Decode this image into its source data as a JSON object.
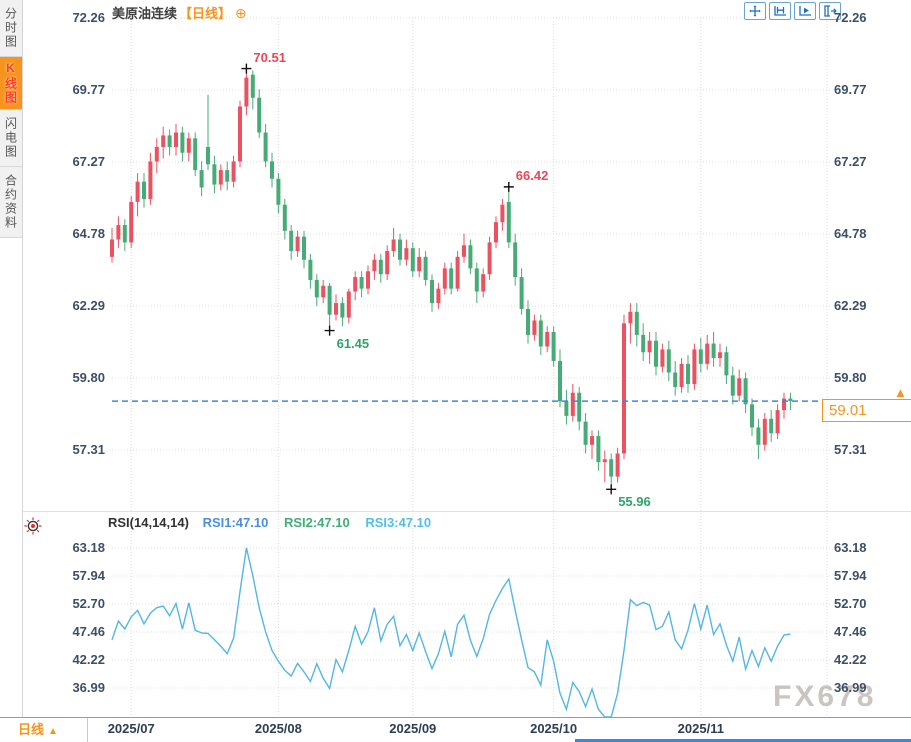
{
  "app": {
    "title": "美原油连续",
    "period_label": "【日线】",
    "watermark": "FX678"
  },
  "sidebar": {
    "tabs": [
      {
        "label": "分时图",
        "active": false
      },
      {
        "label": "K线图",
        "active": true
      },
      {
        "label": "闪电图",
        "active": false
      },
      {
        "label": "合约资料",
        "active": false
      }
    ]
  },
  "toolbar": {
    "icons": [
      "crosshair-icon",
      "range-stats-icon",
      "replay-icon",
      "export-icon"
    ],
    "accent_color": "#1f6fc0"
  },
  "colors": {
    "up_candle": "#ec5160",
    "down_candle": "#46ab76",
    "accent_orange": "#f7941e",
    "current_price_line": "#3f86d8",
    "rsi_line": "#54b6e4",
    "grid": "#dcdcdc",
    "axis_text": "#3d4f66"
  },
  "bottom": {
    "period_tab": "日线",
    "period_arrow": "▲"
  },
  "price_tag": {
    "label": "59.01",
    "arrow": "▲"
  },
  "chart_data": [
    {
      "type": "candlestick",
      "title": "美原油连续【日线】",
      "y_tick_labels": [
        "72.26",
        "69.77",
        "67.27",
        "64.78",
        "62.29",
        "59.80",
        "57.31"
      ],
      "y_ticks": [
        72.26,
        69.77,
        67.27,
        64.78,
        62.29,
        59.8,
        57.31
      ],
      "x_tick_labels": [
        "2025/07",
        "2025/08",
        "2025/09",
        "2025/10",
        "2025/11"
      ],
      "ylim": [
        55.5,
        72.8
      ],
      "grid": "dotted",
      "current_price": 59.01,
      "annotations": [
        {
          "label": "70.51",
          "price": 70.51,
          "candle_index": 21,
          "kind": "high"
        },
        {
          "label": "61.45",
          "price": 61.45,
          "candle_index": 34,
          "kind": "low"
        },
        {
          "label": "66.42",
          "price": 66.42,
          "candle_index": 62,
          "kind": "high"
        },
        {
          "label": "55.96",
          "price": 55.96,
          "candle_index": 78,
          "kind": "low"
        }
      ],
      "candles": [
        [
          "2025/06/26",
          64.0,
          65.0,
          63.8,
          64.6
        ],
        [
          "2025/06/27",
          64.6,
          65.4,
          64.3,
          65.1
        ],
        [
          "2025/06/30",
          65.1,
          65.3,
          64.2,
          64.5
        ],
        [
          "2025/07/01",
          64.5,
          66.1,
          64.3,
          65.9
        ],
        [
          "2025/07/02",
          65.9,
          66.9,
          65.4,
          66.6
        ],
        [
          "2025/07/03",
          66.6,
          66.9,
          65.7,
          66.0
        ],
        [
          "2025/07/04",
          66.0,
          67.6,
          65.8,
          67.3
        ],
        [
          "2025/07/07",
          67.3,
          68.1,
          66.9,
          67.8
        ],
        [
          "2025/07/08",
          67.8,
          68.5,
          67.4,
          68.2
        ],
        [
          "2025/07/09",
          68.2,
          68.4,
          67.5,
          67.8
        ],
        [
          "2025/07/10",
          67.8,
          68.6,
          67.5,
          68.3
        ],
        [
          "2025/07/11",
          68.3,
          68.5,
          67.3,
          67.6
        ],
        [
          "2025/07/14",
          67.6,
          68.3,
          67.3,
          68.1
        ],
        [
          "2025/07/15",
          68.1,
          68.3,
          66.8,
          67.0
        ],
        [
          "2025/07/16",
          67.0,
          67.3,
          66.1,
          66.4
        ],
        [
          "2025/07/17",
          67.8,
          69.6,
          67.0,
          67.2
        ],
        [
          "2025/07/18",
          67.2,
          67.5,
          66.2,
          66.5
        ],
        [
          "2025/07/21",
          66.5,
          67.2,
          66.3,
          67.0
        ],
        [
          "2025/07/22",
          67.0,
          67.3,
          66.3,
          66.6
        ],
        [
          "2025/07/23",
          66.6,
          67.5,
          66.4,
          67.3
        ],
        [
          "2025/07/24",
          67.3,
          69.4,
          67.1,
          69.2
        ],
        [
          "2025/07/25",
          69.2,
          70.51,
          68.9,
          70.2
        ],
        [
          "2025/07/28",
          70.3,
          70.45,
          69.1,
          69.5
        ],
        [
          "2025/07/29",
          69.5,
          69.8,
          68.1,
          68.3
        ],
        [
          "2025/07/30",
          68.3,
          68.6,
          67.1,
          67.3
        ],
        [
          "2025/07/31",
          67.3,
          67.6,
          66.4,
          66.7
        ],
        [
          "2025/08/01",
          66.7,
          66.9,
          65.5,
          65.8
        ],
        [
          "2025/08/04",
          65.8,
          66.0,
          64.6,
          64.9
        ],
        [
          "2025/08/05",
          64.9,
          65.1,
          63.9,
          64.2
        ],
        [
          "2025/08/06",
          64.2,
          64.9,
          64.0,
          64.7
        ],
        [
          "2025/08/07",
          64.7,
          64.9,
          63.6,
          63.9
        ],
        [
          "2025/08/08",
          63.9,
          64.1,
          62.9,
          63.2
        ],
        [
          "2025/08/11",
          63.2,
          63.4,
          62.3,
          62.6
        ],
        [
          "2025/08/12",
          62.6,
          63.2,
          62.4,
          63.0
        ],
        [
          "2025/08/13",
          63.0,
          63.1,
          61.45,
          62.0
        ],
        [
          "2025/08/14",
          62.0,
          62.7,
          61.8,
          62.4
        ],
        [
          "2025/08/15",
          62.4,
          62.6,
          61.6,
          61.9
        ],
        [
          "2025/08/18",
          61.9,
          62.9,
          61.7,
          62.8
        ],
        [
          "2025/08/19",
          62.8,
          63.5,
          62.5,
          63.3
        ],
        [
          "2025/08/20",
          63.3,
          63.5,
          62.6,
          62.9
        ],
        [
          "2025/08/21",
          62.9,
          63.7,
          62.7,
          63.5
        ],
        [
          "2025/08/22",
          63.5,
          64.1,
          63.2,
          63.9
        ],
        [
          "2025/08/25",
          63.9,
          64.1,
          63.1,
          63.4
        ],
        [
          "2025/08/26",
          63.4,
          64.4,
          63.2,
          64.2
        ],
        [
          "2025/08/27",
          64.2,
          65.0,
          64.0,
          64.6
        ],
        [
          "2025/08/28",
          64.6,
          64.8,
          63.7,
          63.9
        ],
        [
          "2025/08/29",
          63.9,
          64.6,
          63.7,
          64.3
        ],
        [
          "2025/09/01",
          64.3,
          64.5,
          63.3,
          63.5
        ],
        [
          "2025/09/02",
          63.5,
          64.3,
          63.3,
          64.0
        ],
        [
          "2025/09/03",
          64.0,
          64.2,
          63.0,
          63.2
        ],
        [
          "2025/09/04",
          63.2,
          63.4,
          62.1,
          62.4
        ],
        [
          "2025/09/05",
          62.4,
          63.1,
          62.2,
          62.9
        ],
        [
          "2025/09/08",
          62.9,
          63.8,
          62.7,
          63.6
        ],
        [
          "2025/09/09",
          63.6,
          63.8,
          62.7,
          62.9
        ],
        [
          "2025/09/10",
          62.9,
          64.2,
          62.8,
          64.0
        ],
        [
          "2025/09/11",
          64.0,
          64.8,
          63.8,
          64.4
        ],
        [
          "2025/09/12",
          64.4,
          64.6,
          63.4,
          63.6
        ],
        [
          "2025/09/15",
          63.6,
          63.8,
          62.4,
          62.8
        ],
        [
          "2025/09/16",
          62.8,
          63.6,
          62.6,
          63.4
        ],
        [
          "2025/09/17",
          63.4,
          64.7,
          63.2,
          64.5
        ],
        [
          "2025/09/18",
          64.5,
          65.4,
          64.3,
          65.2
        ],
        [
          "2025/09/19",
          65.2,
          66.0,
          64.9,
          65.8
        ],
        [
          "2025/09/22",
          65.9,
          66.42,
          64.3,
          64.5
        ],
        [
          "2025/09/23",
          64.5,
          64.8,
          63.0,
          63.3
        ],
        [
          "2025/09/24",
          63.3,
          63.6,
          62.0,
          62.2
        ],
        [
          "2025/09/25",
          62.2,
          62.5,
          61.0,
          61.3
        ],
        [
          "2025/09/26",
          61.3,
          62.0,
          61.1,
          61.8
        ],
        [
          "2025/09/29",
          61.8,
          62.0,
          60.6,
          60.9
        ],
        [
          "2025/09/30",
          60.9,
          61.6,
          60.7,
          61.4
        ],
        [
          "2025/10/01",
          61.4,
          61.6,
          60.2,
          60.4
        ],
        [
          "2025/10/02",
          60.4,
          60.8,
          58.8,
          59.0
        ],
        [
          "2025/10/03",
          59.0,
          59.4,
          58.2,
          58.5
        ],
        [
          "2025/10/06",
          58.5,
          59.6,
          58.3,
          59.3
        ],
        [
          "2025/10/07",
          59.3,
          59.5,
          58.0,
          58.3
        ],
        [
          "2025/10/08",
          58.3,
          58.6,
          57.2,
          57.5
        ],
        [
          "2025/10/09",
          57.5,
          58.0,
          57.0,
          57.8
        ],
        [
          "2025/10/10",
          57.8,
          58.0,
          56.6,
          56.9
        ],
        [
          "2025/10/13",
          56.9,
          57.3,
          56.2,
          57.0
        ],
        [
          "2025/10/14",
          57.0,
          57.2,
          55.96,
          56.4
        ],
        [
          "2025/10/15",
          56.4,
          57.4,
          56.2,
          57.2
        ],
        [
          "2025/10/16",
          57.2,
          62.0,
          57.0,
          61.7
        ],
        [
          "2025/10/17",
          61.7,
          62.4,
          61.0,
          62.1
        ],
        [
          "2025/10/20",
          62.1,
          62.4,
          60.9,
          61.3
        ],
        [
          "2025/10/21",
          61.3,
          61.7,
          60.4,
          60.7
        ],
        [
          "2025/10/22",
          60.7,
          61.4,
          60.3,
          61.1
        ],
        [
          "2025/10/23",
          61.1,
          61.4,
          59.9,
          60.2
        ],
        [
          "2025/10/24",
          60.2,
          61.0,
          60.0,
          60.8
        ],
        [
          "2025/10/27",
          60.8,
          61.1,
          59.7,
          60.0
        ],
        [
          "2025/10/28",
          60.0,
          60.4,
          59.2,
          59.5
        ],
        [
          "2025/10/29",
          59.5,
          60.5,
          59.3,
          60.3
        ],
        [
          "2025/10/30",
          60.3,
          60.6,
          59.3,
          59.6
        ],
        [
          "2025/10/31",
          59.6,
          61.0,
          59.4,
          60.8
        ],
        [
          "2025/11/03",
          60.8,
          61.2,
          60.0,
          60.3
        ],
        [
          "2025/11/04",
          60.3,
          61.3,
          60.1,
          61.0
        ],
        [
          "2025/11/05",
          61.0,
          61.4,
          60.2,
          60.5
        ],
        [
          "2025/11/06",
          60.5,
          61.0,
          60.2,
          60.7
        ],
        [
          "2025/11/07",
          60.7,
          60.9,
          59.6,
          59.9
        ],
        [
          "2025/11/10",
          59.9,
          60.2,
          58.9,
          59.2
        ],
        [
          "2025/11/11",
          59.2,
          60.1,
          59.0,
          59.8
        ],
        [
          "2025/11/12",
          59.8,
          60.0,
          58.6,
          58.9
        ],
        [
          "2025/11/13",
          58.9,
          59.1,
          57.8,
          58.1
        ],
        [
          "2025/11/14",
          58.1,
          58.4,
          57.0,
          57.5
        ],
        [
          "2025/11/17",
          57.5,
          58.6,
          57.3,
          58.4
        ],
        [
          "2025/11/18",
          58.4,
          58.7,
          57.6,
          57.9
        ],
        [
          "2025/11/19",
          57.9,
          58.9,
          57.7,
          58.7
        ],
        [
          "2025/11/20",
          58.7,
          59.3,
          58.4,
          59.1
        ],
        [
          "2025/11/21",
          59.1,
          59.3,
          58.7,
          59.01
        ]
      ]
    },
    {
      "type": "line",
      "name": "RSI",
      "legend": [
        "RSI(14,14,14)",
        "RSI1:47.10",
        "RSI2:47.10",
        "RSI3:47.10"
      ],
      "y_tick_labels": [
        "63.18",
        "57.94",
        "52.70",
        "47.46",
        "42.22",
        "36.99"
      ],
      "y_ticks": [
        63.18,
        57.94,
        52.7,
        47.46,
        42.22,
        36.99
      ],
      "last_value": 47.1,
      "values": [
        46.0,
        49.5,
        48.0,
        50.3,
        51.5,
        49.0,
        51.0,
        52.0,
        52.3,
        50.5,
        52.8,
        48.0,
        52.9,
        47.8,
        47.3,
        47.2,
        46.0,
        44.8,
        43.4,
        46.3,
        55.0,
        63.2,
        58.0,
        52.0,
        47.5,
        44.0,
        42.0,
        40.3,
        39.2,
        41.6,
        40.0,
        38.2,
        41.5,
        38.8,
        36.9,
        42.3,
        40.0,
        44.0,
        48.5,
        45.2,
        47.5,
        52.0,
        45.8,
        48.9,
        50.4,
        44.9,
        47.0,
        44.0,
        47.3,
        43.8,
        40.6,
        43.4,
        47.6,
        42.8,
        48.9,
        50.6,
        45.9,
        42.9,
        46.2,
        50.8,
        53.4,
        55.6,
        57.4,
        51.5,
        46.0,
        40.8,
        40.0,
        37.5,
        46.0,
        42.0,
        36.0,
        33.0,
        38.0,
        36.3,
        33.5,
        36.8,
        33.0,
        31.5,
        30.5,
        36.0,
        44.0,
        53.5,
        52.4,
        53.0,
        52.5,
        47.9,
        48.5,
        51.2,
        46.0,
        44.3,
        47.8,
        52.8,
        48.0,
        52.5,
        47.0,
        49.0,
        45.0,
        42.0,
        46.5,
        40.5,
        44.0,
        41.0,
        44.5,
        42.0,
        44.8,
        46.9,
        47.1
      ]
    }
  ]
}
